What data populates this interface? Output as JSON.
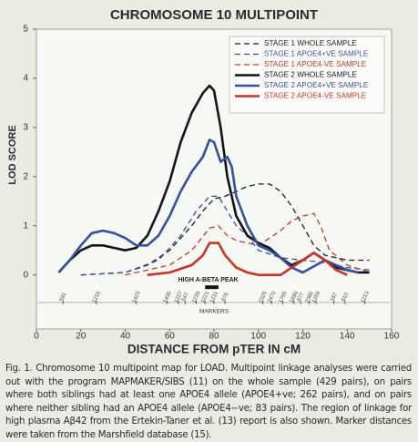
{
  "chart_data": {
    "type": "line",
    "title": "CHROMOSOME 10 MULTIPOINT",
    "x_label": "DISTANCE FROM pTER IN cM",
    "y_label": "LOD SCORE",
    "xlim": [
      0,
      160
    ],
    "xticks": [
      0,
      20,
      40,
      60,
      80,
      100,
      120,
      140,
      160
    ],
    "ylim": [
      -1.1,
      5
    ],
    "yticks": [
      0,
      1,
      2,
      3,
      4,
      5
    ],
    "series": [
      {
        "name": "STAGE 1 WHOLE SAMPLE",
        "color": "#1d1d24",
        "style": "dashed",
        "x": [
          20,
          40,
          50,
          60,
          70,
          75,
          80,
          85,
          90,
          95,
          100,
          105,
          110,
          115,
          120,
          125,
          130,
          140,
          150
        ],
        "values": [
          0,
          0.05,
          0.2,
          0.5,
          1.0,
          1.3,
          1.55,
          1.6,
          1.7,
          1.8,
          1.85,
          1.85,
          1.7,
          1.4,
          1.0,
          0.6,
          0.4,
          0.3,
          0.3
        ]
      },
      {
        "name": "STAGE 1 APOE4+VE SAMPLE",
        "color": "#3b4f98",
        "style": "dashed",
        "x": [
          20,
          40,
          55,
          65,
          72,
          78,
          82,
          86,
          90,
          95,
          100,
          110,
          120,
          130,
          140,
          150
        ],
        "values": [
          0,
          0.05,
          0.3,
          0.8,
          1.3,
          1.6,
          1.6,
          1.3,
          1.0,
          0.8,
          0.5,
          0.35,
          0.3,
          0.25,
          0.15,
          0.1
        ]
      },
      {
        "name": "STAGE 1 APOE4-VE SAMPLE",
        "color": "#c0392b",
        "style": "dashed",
        "x": [
          40,
          60,
          70,
          78,
          82,
          86,
          90,
          100,
          110,
          115,
          120,
          125,
          128,
          132,
          140,
          150
        ],
        "values": [
          0,
          0.2,
          0.5,
          0.95,
          1.0,
          0.8,
          0.7,
          0.6,
          0.9,
          1.1,
          1.2,
          1.25,
          1.0,
          0.5,
          0.2,
          0.05
        ]
      },
      {
        "name": "STAGE 2 WHOLE SAMPLE",
        "color": "#141418",
        "style": "solid",
        "x": [
          10,
          15,
          20,
          25,
          30,
          35,
          40,
          45,
          50,
          55,
          60,
          65,
          70,
          75,
          78,
          80,
          83,
          86,
          90,
          95,
          100,
          105,
          110,
          115,
          120,
          125,
          130,
          135,
          140,
          145,
          150
        ],
        "values": [
          0.05,
          0.3,
          0.5,
          0.6,
          0.6,
          0.55,
          0.5,
          0.55,
          0.8,
          1.3,
          1.9,
          2.7,
          3.3,
          3.7,
          3.85,
          3.75,
          3.0,
          2.0,
          1.2,
          0.8,
          0.65,
          0.55,
          0.35,
          0.2,
          0.3,
          0.45,
          0.3,
          0.15,
          0.1,
          0.05,
          0.05
        ]
      },
      {
        "name": "STAGE 2 APOE4+VE SAMPLE",
        "color": "#34509e",
        "style": "solid",
        "x": [
          10,
          15,
          20,
          25,
          30,
          35,
          40,
          45,
          50,
          55,
          60,
          65,
          70,
          75,
          78,
          80,
          83,
          86,
          88,
          90,
          95,
          100,
          105,
          110,
          115,
          120,
          130,
          135,
          140,
          145
        ],
        "values": [
          0.05,
          0.3,
          0.6,
          0.85,
          0.9,
          0.85,
          0.75,
          0.6,
          0.6,
          0.8,
          1.2,
          1.7,
          2.1,
          2.4,
          2.75,
          2.7,
          2.3,
          2.4,
          2.2,
          1.6,
          1.0,
          0.6,
          0.5,
          0.35,
          0.15,
          0.05,
          0.3,
          0.2,
          0.1,
          0.05
        ]
      },
      {
        "name": "STAGE 2 APOE4-VE SAMPLE",
        "color": "#cc3324",
        "style": "solid",
        "x": [
          50,
          60,
          70,
          75,
          78,
          82,
          85,
          90,
          95,
          100,
          110,
          120,
          125,
          130,
          135,
          140
        ],
        "values": [
          0,
          0.05,
          0.2,
          0.4,
          0.65,
          0.65,
          0.4,
          0.15,
          0.05,
          0,
          0,
          0.3,
          0.45,
          0.3,
          0.1,
          0
        ]
      }
    ],
    "peak": {
      "label": "HIGH A-BETA PEAK",
      "start": 76,
      "end": 82,
      "y": -0.25
    },
    "markers_label": "MARKERS",
    "markers_y": -0.45,
    "markers": [
      {
        "label": "591",
        "x": 12
      },
      {
        "label": "1216",
        "x": 27
      },
      {
        "label": "1423",
        "x": 45
      },
      {
        "label": "1430",
        "x": 59
      },
      {
        "label": "1227",
        "x": 64
      },
      {
        "label": "547",
        "x": 67
      },
      {
        "label": "1239",
        "x": 72
      },
      {
        "label": "1221",
        "x": 76
      },
      {
        "label": "1211",
        "x": 80
      },
      {
        "label": "676",
        "x": 85
      },
      {
        "label": "2325",
        "x": 102
      },
      {
        "label": "2470",
        "x": 106
      },
      {
        "label": "1765",
        "x": 111
      },
      {
        "label": "1696",
        "x": 116
      },
      {
        "label": "677",
        "x": 119
      },
      {
        "label": "2360",
        "x": 123
      },
      {
        "label": "1269",
        "x": 126
      },
      {
        "label": "187",
        "x": 134
      },
      {
        "label": "610",
        "x": 139
      },
      {
        "label": "1213",
        "x": 148
      }
    ]
  },
  "caption": "Fig. 1. Chromosome 10 multipoint map for LOAD. Multipoint linkage analyses were carried out with the program MAPMAKER/SIBS (11) on the whole sample (429 pairs), on pairs where both siblings had at least one APOE4 allele (APOE4+ve; 262 pairs), and on pairs where neither sibling had an APOE4 allele (APOE4−ve; 83 pairs). The region of linkage for high plasma Aβ42 from the Ertekin-Taner et al. (13) report is also shown. Marker distances were taken from the Marshfield database (15)."
}
